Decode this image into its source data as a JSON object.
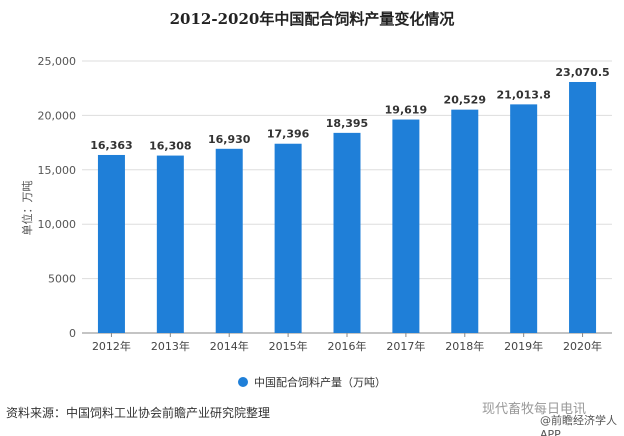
{
  "chart_data": {
    "type": "bar",
    "title": "2012-2020年中国配合饲料产量变化情况",
    "ylabel": "单位：万吨",
    "xlabel": "",
    "categories": [
      "2012年",
      "2013年",
      "2014年",
      "2015年",
      "2016年",
      "2017年",
      "2018年",
      "2019年",
      "2020年"
    ],
    "values": [
      16363,
      16308,
      16930,
      17396,
      18395,
      19619,
      20529,
      21013.8,
      23070.5
    ],
    "data_labels": [
      "16,363",
      "16,308",
      "16,930",
      "17,396",
      "18,395",
      "19,619",
      "20,529",
      "21,013.8",
      "23,070.5"
    ],
    "ylim": [
      0,
      25000
    ],
    "yticks": [
      0,
      5000,
      10000,
      15000,
      20000,
      25000
    ],
    "ytick_labels": [
      "0",
      "5000",
      "10,000",
      "15,000",
      "20,000",
      "25,000"
    ],
    "grid": true,
    "legend": {
      "entries": [
        "中国配合饲料产量（万吨）"
      ],
      "placement": "bottom"
    },
    "color": "#1f7fd8"
  },
  "footer": {
    "source": "资料来源：中国饲料工业协会前瞻产业研究院整理",
    "watermark1": "现代畜牧每日电讯",
    "watermark2": "@前瞻经济学人APP"
  }
}
